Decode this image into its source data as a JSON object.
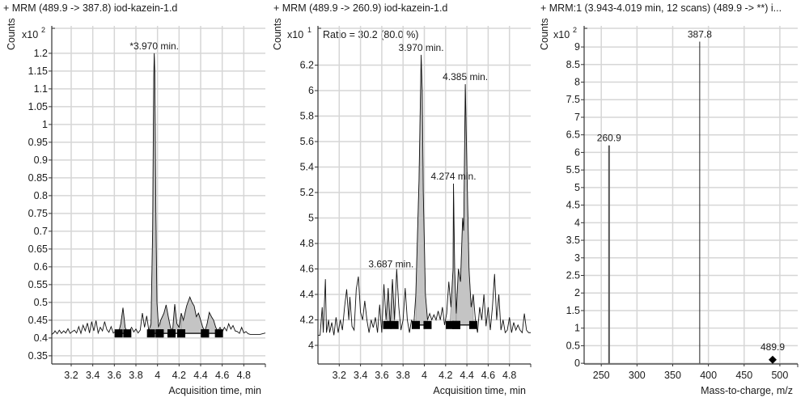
{
  "chart_data": [
    {
      "type": "line",
      "title": "+ MRM (489.9 -> 387.8) iod-kazein-1.d",
      "ylabel": "Counts",
      "y_multiplier": "x10",
      "y_exponent": "2",
      "xlabel": "Acquisition  time, min",
      "xlim": [
        3.02,
        5.0
      ],
      "ylim": [
        0.327,
        1.277
      ],
      "xticks": [
        3.2,
        3.4,
        3.6,
        3.8,
        4,
        4.2,
        4.4,
        4.6,
        4.8
      ],
      "yticks": [
        0.35,
        0.4,
        0.45,
        0.5,
        0.55,
        0.6,
        0.65,
        0.7,
        0.75,
        0.8,
        0.85,
        0.9,
        0.95,
        1,
        1.05,
        1.1,
        1.15,
        1.2
      ],
      "grid": true,
      "trace": [
        [
          3.02,
          0.41
        ],
        [
          3.04,
          0.415
        ],
        [
          3.05,
          0.42
        ],
        [
          3.07,
          0.412
        ],
        [
          3.09,
          0.422
        ],
        [
          3.11,
          0.413
        ],
        [
          3.13,
          0.42
        ],
        [
          3.15,
          0.414
        ],
        [
          3.17,
          0.426
        ],
        [
          3.19,
          0.413
        ],
        [
          3.21,
          0.418
        ],
        [
          3.23,
          0.422
        ],
        [
          3.25,
          0.414
        ],
        [
          3.27,
          0.432
        ],
        [
          3.29,
          0.413
        ],
        [
          3.31,
          0.436
        ],
        [
          3.33,
          0.42
        ],
        [
          3.35,
          0.442
        ],
        [
          3.37,
          0.414
        ],
        [
          3.39,
          0.446
        ],
        [
          3.41,
          0.42
        ],
        [
          3.43,
          0.449
        ],
        [
          3.45,
          0.414
        ],
        [
          3.47,
          0.43
        ],
        [
          3.49,
          0.42
        ],
        [
          3.51,
          0.446
        ],
        [
          3.53,
          0.424
        ],
        [
          3.55,
          0.416
        ],
        [
          3.57,
          0.432
        ],
        [
          3.59,
          0.414
        ],
        [
          3.62,
          0.42
        ],
        [
          3.64,
          0.416
        ],
        [
          3.66,
          0.44
        ],
        [
          3.68,
          0.485
        ],
        [
          3.7,
          0.43
        ],
        [
          3.72,
          0.415
        ],
        [
          3.74,
          0.42
        ],
        [
          3.76,
          0.43
        ],
        [
          3.78,
          0.417
        ],
        [
          3.8,
          0.425
        ],
        [
          3.82,
          0.414
        ],
        [
          3.84,
          0.422
        ],
        [
          3.86,
          0.47
        ],
        [
          3.88,
          0.43
        ],
        [
          3.9,
          0.462
        ],
        [
          3.92,
          0.42
        ],
        [
          3.94,
          0.44
        ],
        [
          3.955,
          0.7
        ],
        [
          3.965,
          1.13
        ],
        [
          3.97,
          1.2
        ],
        [
          3.975,
          1.15
        ],
        [
          3.985,
          0.75
        ],
        [
          3.995,
          0.5
        ],
        [
          4.01,
          0.43
        ],
        [
          4.03,
          0.45
        ],
        [
          4.06,
          0.47
        ],
        [
          4.08,
          0.493
        ],
        [
          4.1,
          0.46
        ],
        [
          4.12,
          0.43
        ],
        [
          4.14,
          0.42
        ],
        [
          4.16,
          0.495
        ],
        [
          4.18,
          0.44
        ],
        [
          4.2,
          0.43
        ],
        [
          4.22,
          0.47
        ],
        [
          4.24,
          0.45
        ],
        [
          4.27,
          0.49
        ],
        [
          4.3,
          0.515
        ],
        [
          4.32,
          0.5
        ],
        [
          4.34,
          0.49
        ],
        [
          4.36,
          0.46
        ],
        [
          4.38,
          0.47
        ],
        [
          4.4,
          0.45
        ],
        [
          4.42,
          0.43
        ],
        [
          4.44,
          0.42
        ],
        [
          4.46,
          0.44
        ],
        [
          4.48,
          0.472
        ],
        [
          4.5,
          0.46
        ],
        [
          4.52,
          0.45
        ],
        [
          4.54,
          0.43
        ],
        [
          4.56,
          0.42
        ],
        [
          4.58,
          0.43
        ],
        [
          4.6,
          0.416
        ],
        [
          4.62,
          0.43
        ],
        [
          4.64,
          0.42
        ],
        [
          4.66,
          0.44
        ],
        [
          4.68,
          0.425
        ],
        [
          4.7,
          0.435
        ],
        [
          4.72,
          0.42
        ],
        [
          4.74,
          0.418
        ],
        [
          4.76,
          0.413
        ],
        [
          4.78,
          0.43
        ],
        [
          4.8,
          0.414
        ],
        [
          4.82,
          0.418
        ],
        [
          4.84,
          0.412
        ],
        [
          4.86,
          0.41
        ],
        [
          4.9,
          0.41
        ],
        [
          4.95,
          0.41
        ],
        [
          5.0,
          0.414
        ]
      ],
      "baseline": 0.413,
      "integrations": [
        [
          3.64,
          3.72
        ],
        [
          3.94,
          4.02
        ],
        [
          4.02,
          4.13
        ],
        [
          4.13,
          4.22
        ],
        [
          4.22,
          4.44
        ],
        [
          4.44,
          4.57
        ]
      ],
      "annotations": [
        {
          "text": "*3.970 min.",
          "x": 3.97,
          "y": 1.2
        }
      ]
    },
    {
      "type": "line",
      "title": "+ MRM (489.9 -> 260.9) iod-kazein-1.d",
      "ylabel": "Counts",
      "y_multiplier": "x10",
      "y_exponent": "1",
      "xlabel": "Acquisition  time, min",
      "ratio_text": "Ratio = 30.2 (80.0 %)",
      "xlim": [
        3.0,
        5.0
      ],
      "ylim": [
        3.854,
        6.508
      ],
      "xticks": [
        3.2,
        3.4,
        3.6,
        3.8,
        4,
        4.2,
        4.4,
        4.6,
        4.8
      ],
      "yticks": [
        4,
        4.2,
        4.4,
        4.6,
        4.8,
        5,
        5.2,
        5.4,
        5.6,
        5.8,
        6,
        6.2
      ],
      "grid": true,
      "trace": [
        [
          3.0,
          4.08
        ],
        [
          3.02,
          4.08
        ],
        [
          3.04,
          4.3
        ],
        [
          3.05,
          4.1
        ],
        [
          3.07,
          4.52
        ],
        [
          3.08,
          4.1
        ],
        [
          3.1,
          4.2
        ],
        [
          3.11,
          4.1
        ],
        [
          3.13,
          4.18
        ],
        [
          3.15,
          4.08
        ],
        [
          3.17,
          4.22
        ],
        [
          3.19,
          4.1
        ],
        [
          3.21,
          4.2
        ],
        [
          3.23,
          4.12
        ],
        [
          3.25,
          4.3
        ],
        [
          3.27,
          4.44
        ],
        [
          3.29,
          4.2
        ],
        [
          3.3,
          4.38
        ],
        [
          3.32,
          4.15
        ],
        [
          3.34,
          4.12
        ],
        [
          3.36,
          4.44
        ],
        [
          3.38,
          4.54
        ],
        [
          3.4,
          4.26
        ],
        [
          3.42,
          4.2
        ],
        [
          3.44,
          4.35
        ],
        [
          3.46,
          4.2
        ],
        [
          3.48,
          4.1
        ],
        [
          3.5,
          4.2
        ],
        [
          3.52,
          4.14
        ],
        [
          3.54,
          4.22
        ],
        [
          3.56,
          4.1
        ],
        [
          3.58,
          4.32
        ],
        [
          3.6,
          4.1
        ],
        [
          3.62,
          4.48
        ],
        [
          3.64,
          4.2
        ],
        [
          3.66,
          4.45
        ],
        [
          3.68,
          4.15
        ],
        [
          3.7,
          4.52
        ],
        [
          3.72,
          4.2
        ],
        [
          3.74,
          4.6
        ],
        [
          3.76,
          4.3
        ],
        [
          3.78,
          4.12
        ],
        [
          3.8,
          4.2
        ],
        [
          3.82,
          4.45
        ],
        [
          3.84,
          4.2
        ],
        [
          3.86,
          4.1
        ],
        [
          3.88,
          4.2
        ],
        [
          3.9,
          4.15
        ],
        [
          3.92,
          4.4
        ],
        [
          3.95,
          5.3
        ],
        [
          3.97,
          6.28
        ],
        [
          3.98,
          6.0
        ],
        [
          3.99,
          5.2
        ],
        [
          4.01,
          4.4
        ],
        [
          4.03,
          4.2
        ],
        [
          4.05,
          4.25
        ],
        [
          4.07,
          4.2
        ],
        [
          4.09,
          4.24
        ],
        [
          4.11,
          4.2
        ],
        [
          4.13,
          4.27
        ],
        [
          4.15,
          4.2
        ],
        [
          4.17,
          4.3
        ],
        [
          4.19,
          4.16
        ],
        [
          4.21,
          4.25
        ],
        [
          4.23,
          4.5
        ],
        [
          4.25,
          4.3
        ],
        [
          4.27,
          4.6
        ],
        [
          4.274,
          5.27
        ],
        [
          4.285,
          4.6
        ],
        [
          4.3,
          4.25
        ],
        [
          4.32,
          4.6
        ],
        [
          4.34,
          4.5
        ],
        [
          4.36,
          5.0
        ],
        [
          4.37,
          4.9
        ],
        [
          4.385,
          6.05
        ],
        [
          4.4,
          5.4
        ],
        [
          4.42,
          4.6
        ],
        [
          4.44,
          4.3
        ],
        [
          4.46,
          4.4
        ],
        [
          4.48,
          4.2
        ],
        [
          4.5,
          4.1
        ],
        [
          4.52,
          4.3
        ],
        [
          4.54,
          4.2
        ],
        [
          4.56,
          4.4
        ],
        [
          4.58,
          4.15
        ],
        [
          4.6,
          4.3
        ],
        [
          4.62,
          4.12
        ],
        [
          4.64,
          4.3
        ],
        [
          4.66,
          4.56
        ],
        [
          4.68,
          4.2
        ],
        [
          4.7,
          4.4
        ],
        [
          4.72,
          4.12
        ],
        [
          4.74,
          4.2
        ],
        [
          4.76,
          4.1
        ],
        [
          4.78,
          4.12
        ],
        [
          4.8,
          4.22
        ],
        [
          4.82,
          4.1
        ],
        [
          4.84,
          4.18
        ],
        [
          4.86,
          4.12
        ],
        [
          4.88,
          4.16
        ],
        [
          4.9,
          4.12
        ],
        [
          4.92,
          4.1
        ],
        [
          4.94,
          4.25
        ],
        [
          4.96,
          4.12
        ],
        [
          4.98,
          4.1
        ],
        [
          5.0,
          4.1
        ]
      ],
      "baseline": 4.16,
      "integrations": [
        [
          3.65,
          3.72
        ],
        [
          3.92,
          4.03
        ],
        [
          4.24,
          4.3
        ],
        [
          4.3,
          4.46
        ]
      ],
      "annotations": [
        {
          "text": "3.970 min.",
          "x": 3.97,
          "y": 6.28
        },
        {
          "text": "4.385 min.",
          "x": 4.385,
          "y": 6.05
        },
        {
          "text": "4.274 min.",
          "x": 4.274,
          "y": 5.27
        },
        {
          "text": "3.687 min.",
          "x": 3.687,
          "y": 4.58
        }
      ]
    },
    {
      "type": "bar",
      "title": "+ MRM:1 (3.943-4.019 min, 12 scans) (489.9 -> **) i...",
      "ylabel": "Counts",
      "y_multiplier": "x10",
      "y_exponent": "2",
      "xlabel": "Mass-to-charge, m/z",
      "xlim": [
        226,
        525
      ],
      "ylim": [
        -0.02,
        9.6
      ],
      "xticks": [
        250,
        300,
        350,
        400,
        450,
        500
      ],
      "yticks": [
        0,
        0.5,
        1,
        1.5,
        2,
        2.5,
        3,
        3.5,
        4,
        4.5,
        5,
        5.5,
        6,
        6.5,
        7,
        7.5,
        8,
        8.5,
        9
      ],
      "grid": true,
      "peaks": [
        {
          "mz": 260.9,
          "value": 6.2,
          "label": "260.9"
        },
        {
          "mz": 387.8,
          "value": 9.15,
          "label": "387.8"
        }
      ],
      "precursor": {
        "mz": 489.9,
        "value": 0.1,
        "label": "489.9"
      }
    }
  ]
}
